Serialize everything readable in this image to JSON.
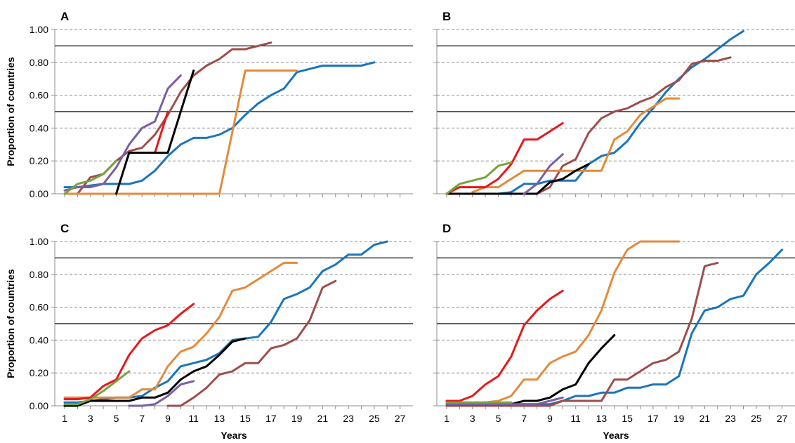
{
  "labels": {
    "ylabel": "Proportion of countries",
    "xlabel": "Years"
  },
  "colors": {
    "blue": "#1a75bc",
    "brown": "#a04d4a",
    "orange": "#e38b3c",
    "red": "#e8181b",
    "black": "#000000",
    "purple": "#7b5ea3",
    "green": "#78a33e",
    "grid": "#8c8c8c",
    "axis": "#8c8c8c"
  },
  "chart_data": [
    {
      "type": "line",
      "panel": "A",
      "xlim": [
        1,
        28
      ],
      "ylim": [
        0,
        1
      ],
      "yticks": [
        "0.00",
        "0.20",
        "0.40",
        "0.60",
        "0.80",
        "1.00"
      ],
      "xticks": [],
      "reference_lines": [
        0.5,
        0.9
      ],
      "grid": true,
      "series": [
        {
          "color": "blue",
          "x": [
            1,
            2,
            3,
            4,
            5,
            6,
            7,
            8,
            9,
            10,
            11,
            12,
            13,
            14,
            15,
            16,
            17,
            18,
            19,
            20,
            21,
            22,
            23,
            24,
            25
          ],
          "y": [
            0.04,
            0.04,
            0.05,
            0.06,
            0.06,
            0.06,
            0.08,
            0.14,
            0.23,
            0.3,
            0.34,
            0.34,
            0.36,
            0.4,
            0.48,
            0.55,
            0.6,
            0.64,
            0.74,
            0.76,
            0.78,
            0.78,
            0.78,
            0.78,
            0.8
          ]
        },
        {
          "color": "brown",
          "x": [
            1,
            2,
            3,
            4,
            5,
            6,
            7,
            8,
            9,
            10,
            11,
            12,
            13,
            14,
            15,
            16,
            17
          ],
          "y": [
            0.0,
            0.0,
            0.1,
            0.12,
            0.2,
            0.26,
            0.28,
            0.36,
            0.48,
            0.62,
            0.72,
            0.78,
            0.82,
            0.88,
            0.88,
            0.9,
            0.92
          ]
        },
        {
          "color": "orange",
          "x": [
            1,
            2,
            3,
            4,
            5,
            6,
            7,
            8,
            9,
            10,
            11,
            12,
            13,
            14,
            15,
            16,
            17,
            18,
            19
          ],
          "y": [
            0,
            0,
            0,
            0,
            0,
            0,
            0,
            0,
            0,
            0,
            0,
            0,
            0,
            0.375,
            0.75,
            0.75,
            0.75,
            0.75,
            0.75
          ]
        },
        {
          "color": "red",
          "x": [
            8,
            9
          ],
          "y": [
            0.25,
            0.5
          ]
        },
        {
          "color": "black",
          "x": [
            5,
            6,
            7,
            8,
            9,
            10,
            11
          ],
          "y": [
            0.0,
            0.25,
            0.25,
            0.25,
            0.25,
            0.5,
            0.75
          ]
        },
        {
          "color": "purple",
          "x": [
            1,
            2,
            3,
            4,
            5,
            6,
            7,
            8,
            9,
            10
          ],
          "y": [
            0.02,
            0.04,
            0.04,
            0.06,
            0.16,
            0.3,
            0.4,
            0.44,
            0.64,
            0.72
          ]
        },
        {
          "color": "green",
          "x": [
            1,
            2,
            3,
            4,
            5
          ],
          "y": [
            0.0,
            0.06,
            0.08,
            0.12,
            0.2
          ]
        }
      ]
    },
    {
      "type": "line",
      "panel": "B",
      "xlim": [
        1,
        28
      ],
      "ylim": [
        0,
        1
      ],
      "yticks": [],
      "xticks": [],
      "reference_lines": [
        0.5,
        0.9
      ],
      "grid": true,
      "series": [
        {
          "color": "blue",
          "x": [
            1,
            2,
            3,
            4,
            5,
            6,
            7,
            8,
            9,
            10,
            11,
            12,
            13,
            14,
            15,
            16,
            17,
            18,
            19,
            20,
            21,
            22,
            23,
            24
          ],
          "y": [
            0,
            0,
            0,
            0,
            0,
            0.01,
            0.06,
            0.06,
            0.08,
            0.08,
            0.08,
            0.18,
            0.23,
            0.25,
            0.32,
            0.43,
            0.52,
            0.62,
            0.7,
            0.77,
            0.82,
            0.88,
            0.94,
            0.99
          ]
        },
        {
          "color": "brown",
          "x": [
            7,
            8,
            9,
            10,
            11,
            12,
            13,
            14,
            15,
            16,
            17,
            18,
            19,
            20,
            21,
            22,
            23
          ],
          "y": [
            0,
            0,
            0.04,
            0.17,
            0.21,
            0.37,
            0.46,
            0.5,
            0.52,
            0.56,
            0.59,
            0.65,
            0.69,
            0.79,
            0.81,
            0.81,
            0.83
          ]
        },
        {
          "color": "orange",
          "x": [
            3,
            4,
            5,
            6,
            7,
            8,
            9,
            10,
            11,
            12,
            13,
            14,
            15,
            16,
            17,
            18,
            19
          ],
          "y": [
            0.01,
            0.04,
            0.04,
            0.09,
            0.14,
            0.14,
            0.14,
            0.14,
            0.14,
            0.14,
            0.14,
            0.33,
            0.38,
            0.48,
            0.53,
            0.58,
            0.58
          ]
        },
        {
          "color": "red",
          "x": [
            1,
            2,
            3,
            4,
            5,
            6,
            7,
            8,
            9,
            10
          ],
          "y": [
            0,
            0.04,
            0.04,
            0.04,
            0.09,
            0.18,
            0.33,
            0.33,
            0.38,
            0.43
          ]
        },
        {
          "color": "black",
          "x": [
            1,
            2,
            3,
            4,
            5,
            6,
            7,
            8,
            9,
            10,
            11,
            12
          ],
          "y": [
            0,
            0,
            0,
            0,
            0,
            0,
            0,
            0,
            0.07,
            0.09,
            0.14,
            0.18
          ]
        },
        {
          "color": "purple",
          "x": [
            7,
            8,
            9,
            10
          ],
          "y": [
            0,
            0.06,
            0.17,
            0.24
          ]
        },
        {
          "color": "green",
          "x": [
            1,
            2,
            3,
            4,
            5,
            6
          ],
          "y": [
            0.0,
            0.06,
            0.08,
            0.1,
            0.17,
            0.19
          ]
        }
      ]
    },
    {
      "type": "line",
      "panel": "C",
      "xlim": [
        1,
        28
      ],
      "ylim": [
        0,
        1
      ],
      "yticks": [
        "0.00",
        "0.20",
        "0.40",
        "0.60",
        "0.80",
        "1.00"
      ],
      "xticks": [
        "1",
        "3",
        "5",
        "7",
        "9",
        "11",
        "13",
        "15",
        "17",
        "19",
        "21",
        "23",
        "25",
        "27"
      ],
      "reference_lines": [
        0.5,
        0.9
      ],
      "grid": true,
      "series": [
        {
          "color": "blue",
          "x": [
            1,
            2,
            3,
            4,
            5,
            6,
            7,
            8,
            9,
            10,
            11,
            12,
            13,
            14,
            15,
            16,
            17,
            18,
            19,
            20,
            21,
            22,
            23,
            24,
            25,
            26
          ],
          "y": [
            0.02,
            0.02,
            0.03,
            0.04,
            0.05,
            0.05,
            0.06,
            0.11,
            0.15,
            0.24,
            0.26,
            0.28,
            0.32,
            0.4,
            0.41,
            0.42,
            0.51,
            0.65,
            0.68,
            0.72,
            0.82,
            0.86,
            0.92,
            0.92,
            0.98,
            1.0
          ]
        },
        {
          "color": "brown",
          "x": [
            9,
            10,
            11,
            12,
            13,
            14,
            15,
            16,
            17,
            18,
            19,
            20,
            21,
            22
          ],
          "y": [
            0,
            0,
            0.05,
            0.11,
            0.19,
            0.21,
            0.26,
            0.26,
            0.35,
            0.37,
            0.41,
            0.52,
            0.72,
            0.76
          ]
        },
        {
          "color": "orange",
          "x": [
            1,
            2,
            3,
            4,
            5,
            6,
            7,
            8,
            9,
            10,
            11,
            12,
            13,
            14,
            15,
            16,
            17,
            18,
            19
          ],
          "y": [
            0.05,
            0.05,
            0.05,
            0.05,
            0.05,
            0.05,
            0.1,
            0.1,
            0.24,
            0.33,
            0.36,
            0.44,
            0.54,
            0.7,
            0.72,
            0.77,
            0.82,
            0.87,
            0.87
          ]
        },
        {
          "color": "red",
          "x": [
            1,
            2,
            3,
            4,
            5,
            6,
            7,
            8,
            9,
            10,
            11
          ],
          "y": [
            0.04,
            0.04,
            0.05,
            0.12,
            0.16,
            0.31,
            0.41,
            0.46,
            0.49,
            0.56,
            0.62
          ]
        },
        {
          "color": "black",
          "x": [
            1,
            2,
            3,
            4,
            5,
            6,
            7,
            8,
            9,
            10,
            11,
            12,
            13,
            14,
            15
          ],
          "y": [
            0.0,
            0.0,
            0.03,
            0.03,
            0.03,
            0.03,
            0.05,
            0.05,
            0.08,
            0.16,
            0.21,
            0.24,
            0.31,
            0.39,
            0.41
          ]
        },
        {
          "color": "purple",
          "x": [
            6,
            7,
            8,
            9,
            10,
            11
          ],
          "y": [
            0,
            0,
            0.01,
            0.06,
            0.13,
            0.15
          ]
        },
        {
          "color": "green",
          "x": [
            1,
            2,
            3,
            4,
            5,
            6
          ],
          "y": [
            0.01,
            0.01,
            0.04,
            0.09,
            0.15,
            0.21
          ]
        }
      ]
    },
    {
      "type": "line",
      "panel": "D",
      "xlim": [
        1,
        28
      ],
      "ylim": [
        0,
        1
      ],
      "yticks": [],
      "xticks": [
        "1",
        "3",
        "5",
        "7",
        "9",
        "11",
        "13",
        "15",
        "17",
        "19",
        "21",
        "23",
        "25",
        "27"
      ],
      "reference_lines": [
        0.5,
        0.9
      ],
      "grid": true,
      "series": [
        {
          "color": "blue",
          "x": [
            1,
            2,
            3,
            4,
            5,
            6,
            7,
            8,
            9,
            10,
            11,
            12,
            13,
            14,
            15,
            16,
            17,
            18,
            19,
            20,
            21,
            22,
            23,
            24,
            25,
            26,
            27
          ],
          "y": [
            0.01,
            0.01,
            0.01,
            0.01,
            0.01,
            0.01,
            0.01,
            0.01,
            0.01,
            0.03,
            0.06,
            0.06,
            0.08,
            0.08,
            0.11,
            0.11,
            0.13,
            0.13,
            0.18,
            0.44,
            0.58,
            0.6,
            0.65,
            0.67,
            0.8,
            0.87,
            0.95
          ]
        },
        {
          "color": "brown",
          "x": [
            1,
            2,
            3,
            4,
            5,
            6,
            7,
            8,
            9,
            10,
            11,
            12,
            13,
            14,
            15,
            16,
            17,
            18,
            19,
            20,
            21,
            22
          ],
          "y": [
            0,
            0,
            0,
            0,
            0,
            0,
            0,
            0,
            0,
            0.03,
            0.03,
            0.03,
            0.03,
            0.16,
            0.16,
            0.21,
            0.26,
            0.28,
            0.33,
            0.53,
            0.85,
            0.87
          ]
        },
        {
          "color": "orange",
          "x": [
            1,
            2,
            3,
            4,
            5,
            6,
            7,
            8,
            9,
            10,
            11,
            12,
            13,
            14,
            15,
            16,
            17,
            18,
            19
          ],
          "y": [
            0.02,
            0.02,
            0.02,
            0.02,
            0.03,
            0.06,
            0.16,
            0.16,
            0.26,
            0.3,
            0.33,
            0.43,
            0.58,
            0.81,
            0.95,
            1.0,
            1.0,
            1.0,
            1.0
          ]
        },
        {
          "color": "red",
          "x": [
            1,
            2,
            3,
            4,
            5,
            6,
            7,
            8,
            9,
            10
          ],
          "y": [
            0.03,
            0.03,
            0.06,
            0.13,
            0.18,
            0.3,
            0.49,
            0.58,
            0.65,
            0.7
          ]
        },
        {
          "color": "black",
          "x": [
            1,
            2,
            3,
            4,
            5,
            6,
            7,
            8,
            9,
            10,
            11,
            12,
            13,
            14
          ],
          "y": [
            0.01,
            0.01,
            0.01,
            0.01,
            0.01,
            0.01,
            0.03,
            0.03,
            0.05,
            0.1,
            0.13,
            0.26,
            0.35,
            0.43
          ]
        },
        {
          "color": "purple",
          "x": [
            1,
            2,
            3,
            4,
            5,
            6,
            7,
            8,
            9,
            10
          ],
          "y": [
            0.01,
            0.01,
            0.01,
            0.01,
            0.01,
            0.01,
            0.01,
            0.01,
            0.03,
            0.05
          ]
        },
        {
          "color": "green",
          "x": [
            1,
            2,
            3,
            4,
            5,
            6
          ],
          "y": [
            0.02,
            0.02,
            0.02,
            0.02,
            0.02,
            0.02
          ]
        }
      ]
    }
  ]
}
